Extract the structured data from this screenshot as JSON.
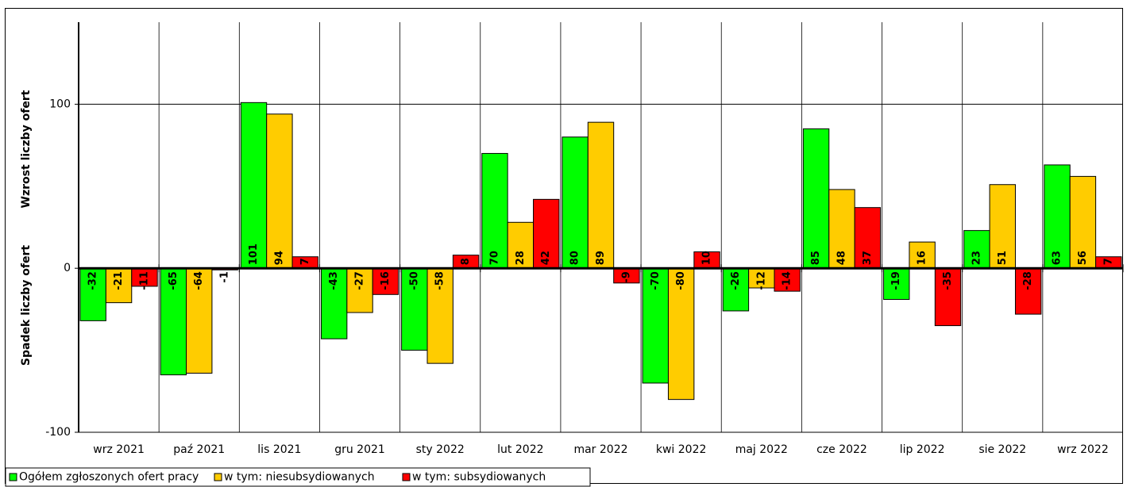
{
  "chart_data": {
    "type": "bar",
    "categories": [
      "wrz 2021",
      "paź 2021",
      "lis 2021",
      "gru 2021",
      "sty 2022",
      "lut 2022",
      "mar 2022",
      "kwi 2022",
      "maj 2022",
      "cze 2022",
      "lip 2022",
      "sie 2022",
      "wrz 2022"
    ],
    "series": [
      {
        "name": "Ogółem zgłoszonych ofert pracy",
        "color": "#00ff00",
        "values": [
          -32,
          -65,
          101,
          -43,
          -50,
          70,
          80,
          -70,
          -26,
          85,
          -19,
          23,
          63
        ]
      },
      {
        "name": "w tym: niesubsydiowanych",
        "color": "#ffcc00",
        "values": [
          -21,
          -64,
          94,
          -27,
          -58,
          28,
          89,
          -80,
          -12,
          48,
          16,
          51,
          56
        ]
      },
      {
        "name": "w tym: subsydiowanych",
        "color": "#ff0000",
        "values": [
          -11,
          -1,
          7,
          -16,
          8,
          42,
          -9,
          10,
          -14,
          37,
          -35,
          -28,
          7
        ]
      }
    ],
    "ylim": [
      -100,
      150
    ],
    "yticks": [
      100,
      0,
      -100
    ],
    "ylabel_top": "Wzrost liczby ofert",
    "ylabel_bottom": "Spadek liczby ofert",
    "grid": "horizontal at 100",
    "legend_position": "bottom-left"
  }
}
